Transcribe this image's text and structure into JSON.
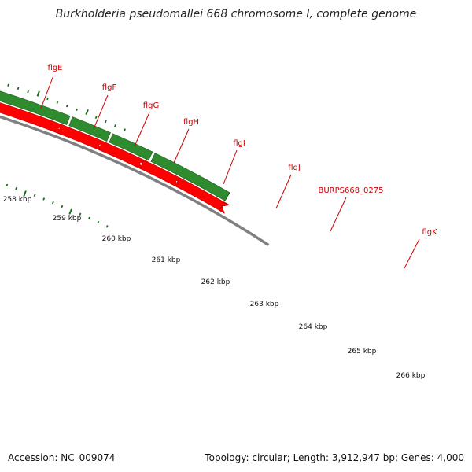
{
  "title": "Burkholderia pseudomallei 668 chromosome I, complete genome",
  "footer": {
    "accession": "Accession: NC_009074",
    "topology": "Topology: circular; Length: 3,912,947 bp; Genes: 4,000"
  },
  "colors": {
    "gene_forward": "#2e8b2e",
    "gene_highlight": "#adff2f",
    "gene_other": "#6b8e23",
    "cds_reverse": "#ff0000",
    "backbone": "#808080",
    "label": "#cc0000",
    "tick": "#1a6e1a"
  },
  "gene_labels": [
    "flgE",
    "flgF",
    "flgG",
    "flgH",
    "flgI",
    "flgJ",
    "BURPS668_0275",
    "flgK"
  ],
  "kbp_labels": [
    "258 kbp",
    "259 kbp",
    "260 kbp",
    "261 kbp",
    "262 kbp",
    "263 kbp",
    "264 kbp",
    "265 kbp",
    "266 kbp"
  ]
}
